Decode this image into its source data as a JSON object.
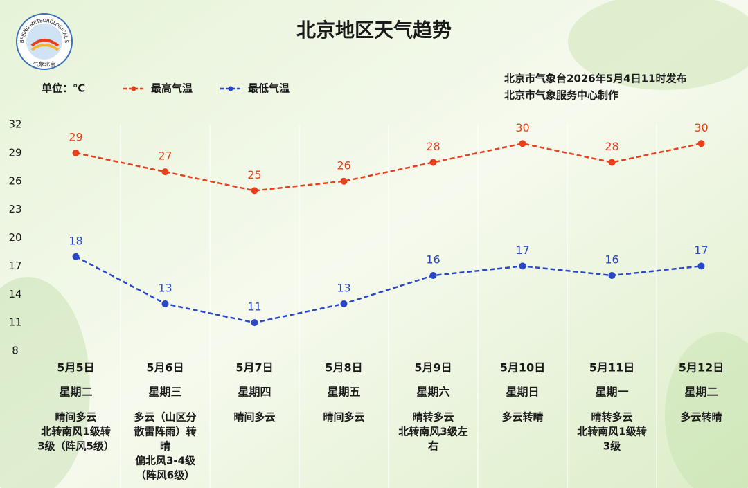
{
  "logo": {
    "text_en": "BEIJING METEOROLOGICAL SERVICE",
    "text_cn": "气象北京"
  },
  "chart_data": {
    "type": "line",
    "title": "北京地区天气趋势",
    "unit_label": "单位：℃",
    "publisher": [
      "北京市气象台2026年5月4日11时发布",
      "北京市气象服务中心制作"
    ],
    "categories": [
      "5月5日",
      "5月6日",
      "5月7日",
      "5月8日",
      "5月9日",
      "5月10日",
      "5月11日",
      "5月12日"
    ],
    "series": [
      {
        "name": "最高气温",
        "color": "#e8401c",
        "values": [
          29,
          27,
          25,
          26,
          28,
          30,
          28,
          30
        ]
      },
      {
        "name": "最低气温",
        "color": "#2a47c8",
        "values": [
          18,
          13,
          11,
          13,
          16,
          17,
          16,
          17
        ]
      }
    ],
    "ylim": [
      8,
      32
    ],
    "yticks": [
      8,
      11,
      14,
      17,
      20,
      23,
      26,
      29,
      32
    ],
    "grid": true
  },
  "forecast": [
    {
      "weekday": "星期二",
      "weather": [
        "晴间多云",
        "北转南风1级转",
        "3级（阵风5级）"
      ]
    },
    {
      "weekday": "星期三",
      "weather": [
        "多云（山区分",
        "散雷阵雨）转",
        "晴",
        "偏北风3-4级",
        "（阵风6级）"
      ]
    },
    {
      "weekday": "星期四",
      "weather": [
        "晴间多云"
      ]
    },
    {
      "weekday": "星期五",
      "weather": [
        "晴间多云"
      ]
    },
    {
      "weekday": "星期六",
      "weather": [
        "晴转多云",
        "北转南风3级左",
        "右"
      ]
    },
    {
      "weekday": "星期日",
      "weather": [
        "多云转晴"
      ]
    },
    {
      "weekday": "星期一",
      "weather": [
        "晴转多云",
        "北转南风1级转",
        "3级"
      ]
    },
    {
      "weekday": "星期二",
      "weather": [
        "多云转晴"
      ]
    }
  ]
}
